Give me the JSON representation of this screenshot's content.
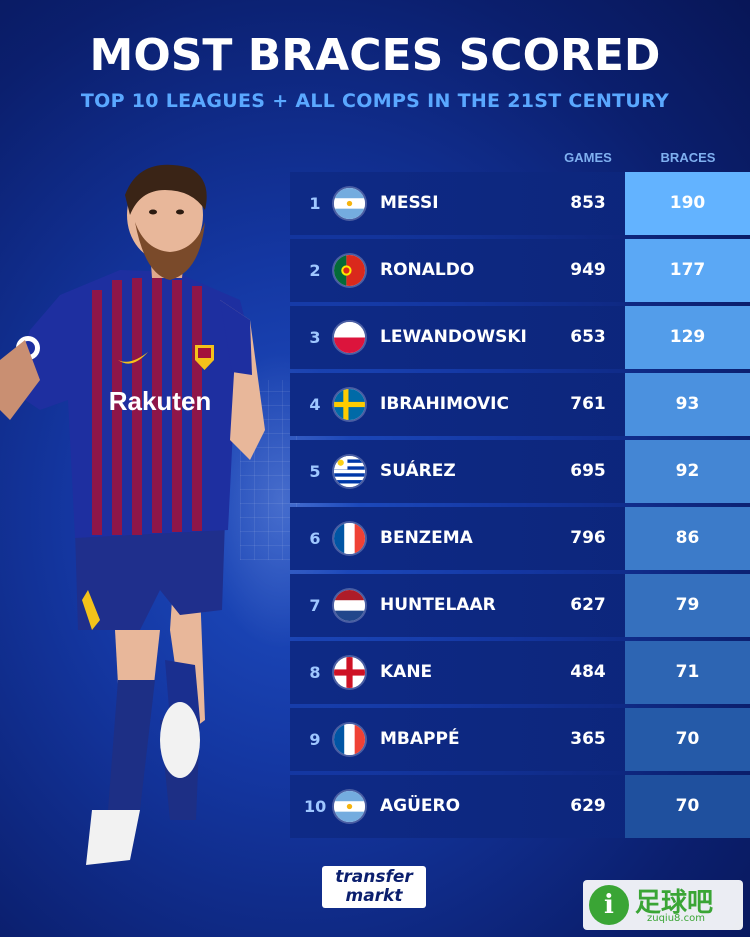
{
  "header": {
    "title": "MOST BRACES SCORED",
    "subtitle": "TOP 10 LEAGUES + ALL COMPS IN THE 21ST CENTURY"
  },
  "columns": {
    "games": "GAMES",
    "braces": "BRACES"
  },
  "rows": [
    {
      "rank": "1",
      "name": "MESSI",
      "country": "argentina",
      "games": "853",
      "braces": "190"
    },
    {
      "rank": "2",
      "name": "RONALDO",
      "country": "portugal",
      "games": "949",
      "braces": "177"
    },
    {
      "rank": "3",
      "name": "LEWANDOWSKI",
      "country": "poland",
      "games": "653",
      "braces": "129"
    },
    {
      "rank": "4",
      "name": "IBRAHIMOVIC",
      "country": "sweden",
      "games": "761",
      "braces": "93"
    },
    {
      "rank": "5",
      "name": "SUÁREZ",
      "country": "uruguay",
      "games": "695",
      "braces": "92"
    },
    {
      "rank": "6",
      "name": "BENZEMA",
      "country": "france",
      "games": "796",
      "braces": "86"
    },
    {
      "rank": "7",
      "name": "HUNTELAAR",
      "country": "netherlands",
      "games": "627",
      "braces": "79"
    },
    {
      "rank": "8",
      "name": "KANE",
      "country": "england",
      "games": "484",
      "braces": "71"
    },
    {
      "rank": "9",
      "name": "MBAPPÉ",
      "country": "france",
      "games": "365",
      "braces": "70"
    },
    {
      "rank": "10",
      "name": "AGÜERO",
      "country": "argentina",
      "games": "629",
      "braces": "70"
    }
  ],
  "braces_colors": [
    "#63b3ff",
    "#5ba8f5",
    "#539dea",
    "#4b91df",
    "#4486d4",
    "#3c7bc9",
    "#3570be",
    "#2d65b3",
    "#255aa8",
    "#1f509e"
  ],
  "player": {
    "shirt_sponsor": "Rakuten"
  },
  "logo": {
    "line1": "transfer",
    "line2": "markt"
  },
  "watermark": {
    "main": "足球吧",
    "url": "zuqiu8.com"
  }
}
